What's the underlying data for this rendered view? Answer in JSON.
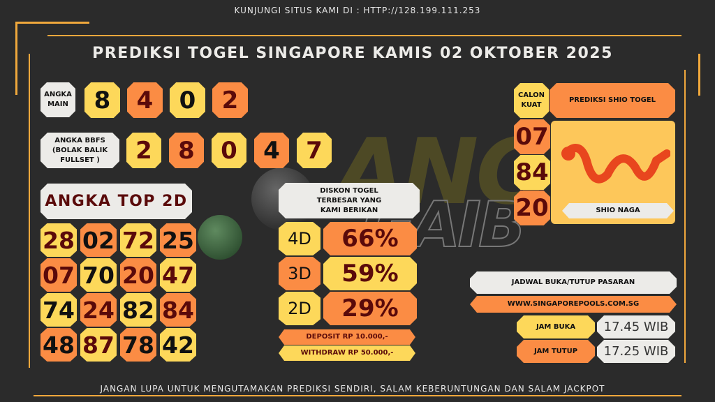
{
  "header": {
    "visit": "KUNJUNGI SITUS KAMI DI : HTTP://128.199.111.253",
    "title": "PREDIKSI TOGEL SINGAPORE KAMIS 02 OKTOBER 2025"
  },
  "angka_main": {
    "label": "ANGKA MAIN",
    "digits": [
      "8",
      "4",
      "0",
      "2"
    ]
  },
  "bbfs": {
    "label": "ANGKA BBFS (BOLAK BALIK FULLSET )",
    "digits": [
      "2",
      "8",
      "0",
      "4",
      "7"
    ]
  },
  "top2d": {
    "label": "ANGKA TOP 2D",
    "numbers": [
      "28",
      "02",
      "72",
      "25",
      "07",
      "70",
      "20",
      "47",
      "74",
      "24",
      "82",
      "84",
      "48",
      "87",
      "78",
      "42"
    ]
  },
  "diskon": {
    "title": "DISKON TOGEL TERBESAR YANG KAMI BERIKAN",
    "rows": [
      {
        "type": "4D",
        "value": "66%"
      },
      {
        "type": "3D",
        "value": "59%"
      },
      {
        "type": "2D",
        "value": "29%"
      }
    ],
    "deposit": "DEPOSIT RP 10.000,-",
    "withdraw": "WITHDRAW RP 50.000,-"
  },
  "shio": {
    "calon_label": "CALON KUAT",
    "title": "PREDIKSI SHIO TOGEL",
    "numbers": [
      "07",
      "84",
      "20"
    ],
    "name": "SHIO NAGA"
  },
  "jadwal": {
    "title": "JADWAL BUKA/TUTUP PASARAN",
    "site": "WWW.SINGAPOREPOOLS.COM.SG",
    "buka_label": "JAM BUKA",
    "buka": "17.45 WIB",
    "tutup_label": "JAM TUTUP",
    "tutup": "17.25 WIB"
  },
  "footer": "JANGAN LUPA UNTUK MENGUTAMAKAN PREDIKSI SENDIRI, SALAM KEBERUNTUNGAN DAN SALAM JACKPOT",
  "watermark": "ANGKA GAIB",
  "colors": {
    "yellow": "#fdd85a",
    "orange": "#fb8c44",
    "white": "#ecebe8",
    "gold_line": "#f0a83c",
    "bg": "#2b2b2b"
  }
}
